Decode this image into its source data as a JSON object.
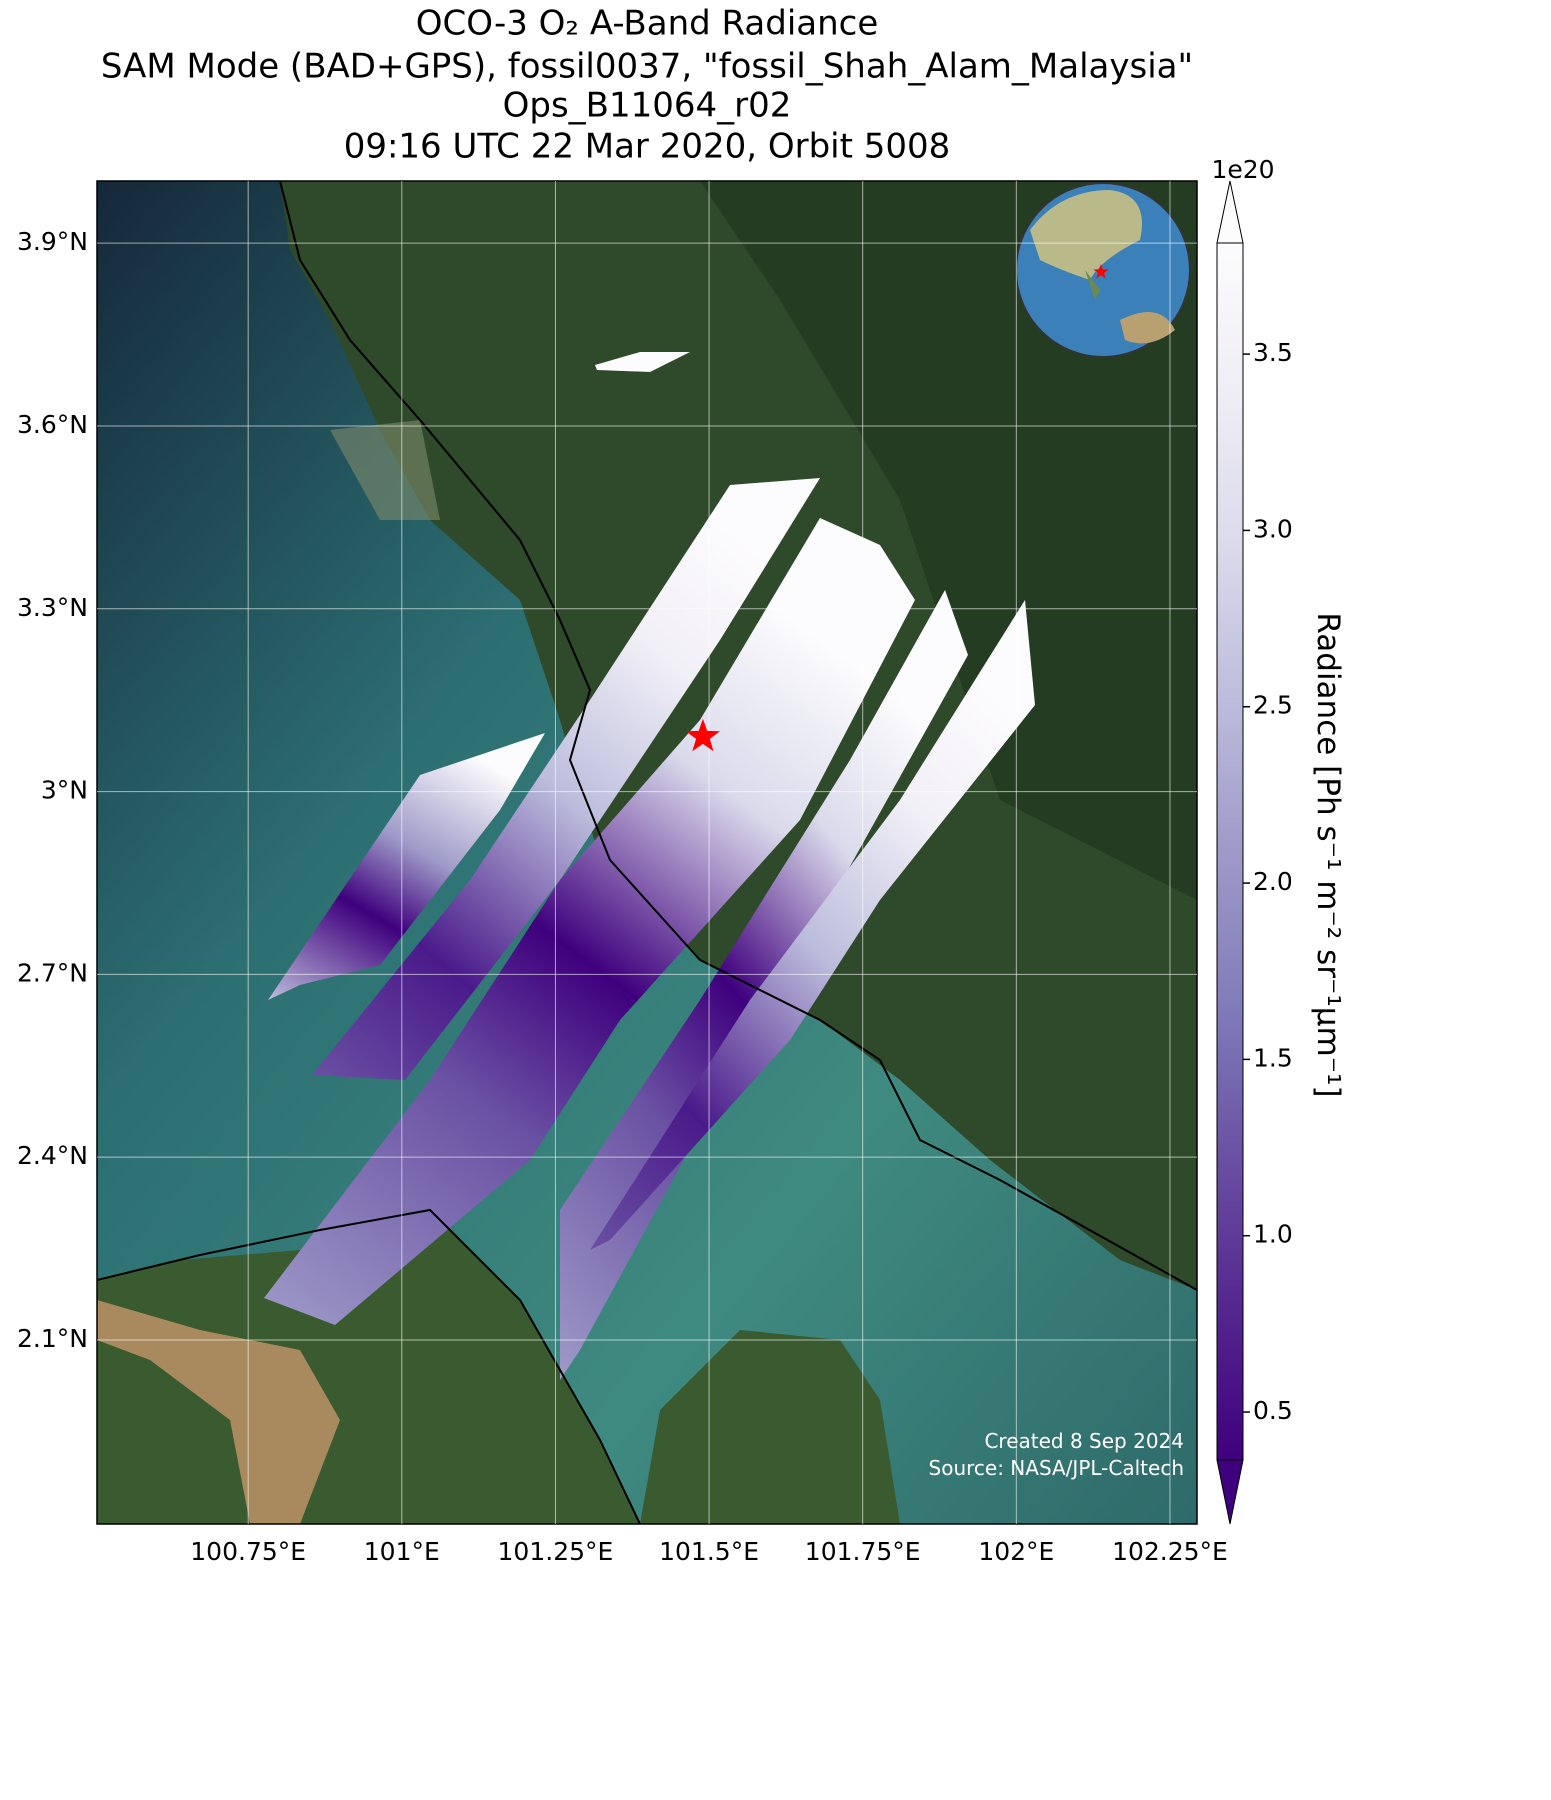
{
  "title": [
    "OCO-3 O₂ A-Band Radiance",
    "SAM Mode (BAD+GPS), fossil0037, \"fossil_Shah_Alam_Malaysia\"",
    "Ops_B11064_r02",
    "09:16 UTC 22 Mar 2020, Orbit 5008"
  ],
  "map": {
    "xlim": [
      100.504,
      102.294
    ],
    "ylim": [
      1.798,
      4.002
    ],
    "xticks": [
      {
        "value": 100.75,
        "label": "100.75°E"
      },
      {
        "value": 101,
        "label": "101°E"
      },
      {
        "value": 101.25,
        "label": "101.25°E"
      },
      {
        "value": 101.5,
        "label": "101.5°E"
      },
      {
        "value": 101.75,
        "label": "101.75°E"
      },
      {
        "value": 102,
        "label": "102°E"
      },
      {
        "value": 102.25,
        "label": "102.25°E"
      }
    ],
    "yticks": [
      {
        "value": 2.1,
        "label": "2.1°N"
      },
      {
        "value": 2.4,
        "label": "2.4°N"
      },
      {
        "value": 2.7,
        "label": "2.7°N"
      },
      {
        "value": 3,
        "label": "3°N"
      },
      {
        "value": 3.3,
        "label": "3.3°N"
      },
      {
        "value": 3.6,
        "label": "3.6°N"
      },
      {
        "value": 3.9,
        "label": "3.9°N"
      }
    ],
    "grid": true,
    "target": {
      "lon": 101.49,
      "lat": 3.09,
      "color": "#ff0000"
    }
  },
  "colorbar": {
    "label": "Radiance [Ph s⁻¹ m⁻² sr⁻¹μm⁻¹]",
    "scale_label": "1e20",
    "lim": [
      0.364,
      3.815
    ],
    "ticks": [
      0.5,
      1.0,
      1.5,
      2.0,
      2.5,
      3.0,
      3.5
    ],
    "colors": [
      "#3f007d",
      "#54278f",
      "#6a51a3",
      "#807dba",
      "#9e9ac8",
      "#bcbddc",
      "#dadaeb",
      "#efedf5",
      "#fcfbfd"
    ],
    "extend": "both"
  },
  "credits": [
    "Created 8 Sep 2024",
    "Source: NASA/JPL-Caltech"
  ]
}
